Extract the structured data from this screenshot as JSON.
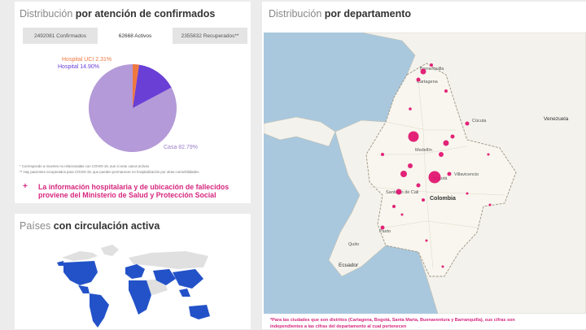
{
  "attention": {
    "title_prefix": "Distribución ",
    "title_bold": "por atención de confirmados",
    "tabs": [
      {
        "label": "2492081 Confirmados"
      },
      {
        "label": "62668 Activos"
      },
      {
        "label": "2355832 Recuperados**"
      }
    ],
    "pie": {
      "slices": [
        {
          "name": "Casa",
          "label": "Casa 82.79%",
          "value": 82.79,
          "color": "#b49ad8"
        },
        {
          "name": "Hospital",
          "label": "Hospital 14.90%",
          "value": 14.9,
          "color": "#6a3fd6"
        },
        {
          "name": "Hospital UCI",
          "label": "Hospital UCI 2.31%",
          "value": 2.31,
          "color": "#f07840"
        }
      ]
    },
    "footnotes": [
      "* Corresponde a muertes no relacionadas con COVID-19, aun si eran casos activos",
      "** Hay pacientes recuperados para COVID-19, que pueden permanecer en hospitalización por otras comorbilidades"
    ],
    "note_icon": "+",
    "note_line1": "La información hospitalaria y de ubicación de fallecidos",
    "note_line2": "proviene del Ministerio de Salud y Protección Social"
  },
  "countries": {
    "title_prefix": "Países ",
    "title_bold": "con circulación activa",
    "colors": {
      "active": "#2352c8",
      "inactive": "#e0e0e0"
    }
  },
  "departments": {
    "title_prefix": "Distribución ",
    "title_bold": "por departamento",
    "map_labels": {
      "barranquilla": "Barranquilla",
      "cartagena": "Cartagena",
      "cucuta": "Cúcuta",
      "medellin": "Medellín",
      "bogota": "Bogotá",
      "villavicencio": "Villavicencio",
      "venezuela": "Venezuela",
      "colombia": "Colombia",
      "ecuador": "Ecuador",
      "santiago_de_cali": "Santiago de Cali",
      "pasto": "Pasto",
      "quito": "Quito"
    },
    "bubble_color": "#e0106e",
    "bottom_note_line1": "*Para las ciudades que son distritos (Cartagena, Bogotá, Santa Marta, Buenaventura y Barranquilla), sus cifras son",
    "bottom_note_line2": "independientes a las cifras del departamento al cual pertenecen"
  }
}
